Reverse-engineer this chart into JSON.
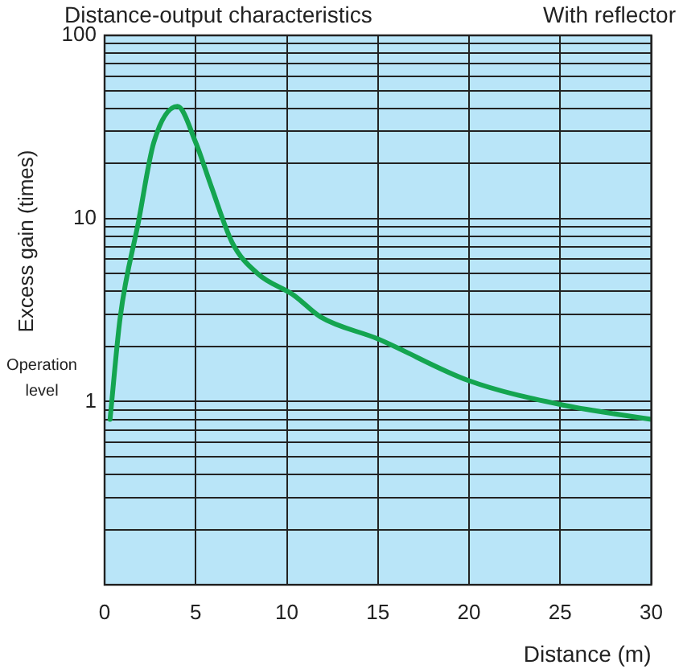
{
  "chart_data": {
    "type": "line",
    "title": "Distance-output characteristics",
    "subtitle": "With reflector",
    "xlabel": "Distance (m)",
    "ylabel": "Excess gain (times)",
    "annotations": [
      "Operation level"
    ],
    "series": [
      {
        "color": "#14a550",
        "x": [
          0.3,
          0.86,
          1.86,
          2.7,
          4.0,
          5.0,
          5.85,
          7.0,
          8.4,
          10.4,
          11.85,
          15.0,
          20.0,
          25.1,
          30
        ],
        "values": [
          0.8,
          2.9,
          9.6,
          26,
          41,
          26,
          15,
          7.4,
          5.0,
          3.8,
          2.9,
          2.2,
          1.3,
          0.96,
          0.8
        ]
      }
    ],
    "xlim": [
      0,
      30
    ],
    "xticks": [
      0,
      5,
      10,
      15,
      20,
      25,
      30
    ],
    "ylim": [
      0.1,
      100
    ],
    "log": "y",
    "yticks": [
      {
        "value": 0.2,
        "label": null
      },
      {
        "value": 0.3,
        "label": null
      },
      {
        "value": 0.4,
        "label": null
      },
      {
        "value": 0.5,
        "label": null
      },
      {
        "value": 0.6,
        "label": null
      },
      {
        "value": 0.7,
        "label": null
      },
      {
        "value": 0.8,
        "label": null
      },
      {
        "value": 0.9,
        "label": null
      },
      1,
      {
        "value": 2,
        "label": null
      },
      {
        "value": 3,
        "label": null
      },
      {
        "value": 4,
        "label": null
      },
      {
        "value": 5,
        "label": null
      },
      {
        "value": 6,
        "label": null
      },
      {
        "value": 7,
        "label": null
      },
      {
        "value": 8,
        "label": null
      },
      {
        "value": 9,
        "label": null
      },
      10,
      {
        "value": 20,
        "label": null
      },
      {
        "value": 30,
        "label": null
      },
      {
        "value": 40,
        "label": null
      },
      {
        "value": 50,
        "label": null
      },
      {
        "value": 60,
        "label": null
      },
      {
        "value": 70,
        "label": null
      },
      {
        "value": 80,
        "label": null
      },
      {
        "value": 90,
        "label": null
      },
      100
    ],
    "grid": true,
    "legend": false,
    "marker": "none",
    "line_style": "solid"
  }
}
